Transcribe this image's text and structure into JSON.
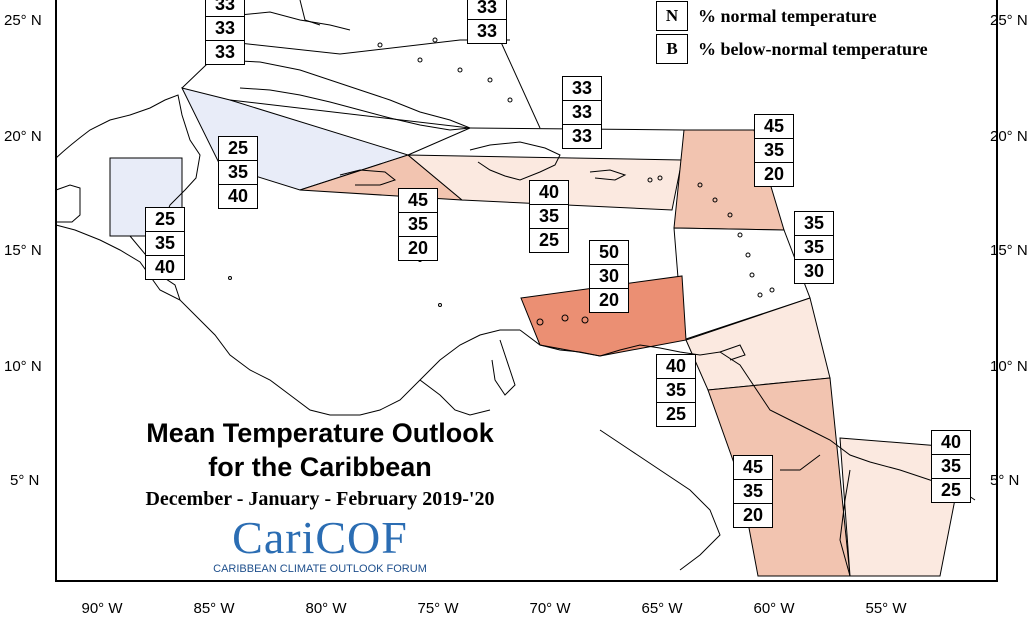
{
  "title_line1": "Mean Temperature Outlook",
  "title_line2": "for the Caribbean",
  "period": "December - January - February 2019-'20",
  "logo": {
    "main": "CariCOF",
    "sub": "CARIBBEAN CLIMATE OUTLOOK FORUM"
  },
  "legend": [
    {
      "key": "N",
      "text": "% normal temperature"
    },
    {
      "key": "B",
      "text": "% below-normal temperature"
    }
  ],
  "latitude_labels": [
    "25° N",
    "20° N",
    "15° N",
    "10° N",
    "5° N"
  ],
  "longitude_labels": [
    "90° W",
    "85° W",
    "80° W",
    "75° W",
    "70° W",
    "65° W",
    "60° W",
    "55° W"
  ],
  "colors": {
    "b45": "#f2c4b0",
    "b50": "#eb8f73",
    "b40": "#fbe9e0",
    "b25": "#e8ecf8",
    "neutral": "#ffffff"
  },
  "regions": [
    {
      "name": "bahamas-nw",
      "values": [
        "33",
        "33",
        "33"
      ]
    },
    {
      "name": "bahamas-se",
      "values": [
        "33",
        "33"
      ]
    },
    {
      "name": "turks-caicos",
      "values": [
        "33",
        "33",
        "33"
      ]
    },
    {
      "name": "cuba",
      "values": [
        "25",
        "35",
        "40"
      ]
    },
    {
      "name": "belize",
      "values": [
        "25",
        "35",
        "40"
      ]
    },
    {
      "name": "jamaica",
      "values": [
        "45",
        "35",
        "20"
      ]
    },
    {
      "name": "hispaniola-puerto-rico",
      "values": [
        "40",
        "35",
        "25"
      ]
    },
    {
      "name": "leeward-islands",
      "values": [
        "45",
        "35",
        "20"
      ]
    },
    {
      "name": "windward-islands",
      "values": [
        "35",
        "35",
        "30"
      ]
    },
    {
      "name": "abc-islands",
      "values": [
        "50",
        "30",
        "20"
      ]
    },
    {
      "name": "trinidad-tobago",
      "values": [
        "40",
        "35",
        "25"
      ]
    },
    {
      "name": "guyana",
      "values": [
        "45",
        "35",
        "20"
      ]
    },
    {
      "name": "suriname-french-guiana",
      "values": [
        "40",
        "35",
        "25"
      ]
    }
  ]
}
